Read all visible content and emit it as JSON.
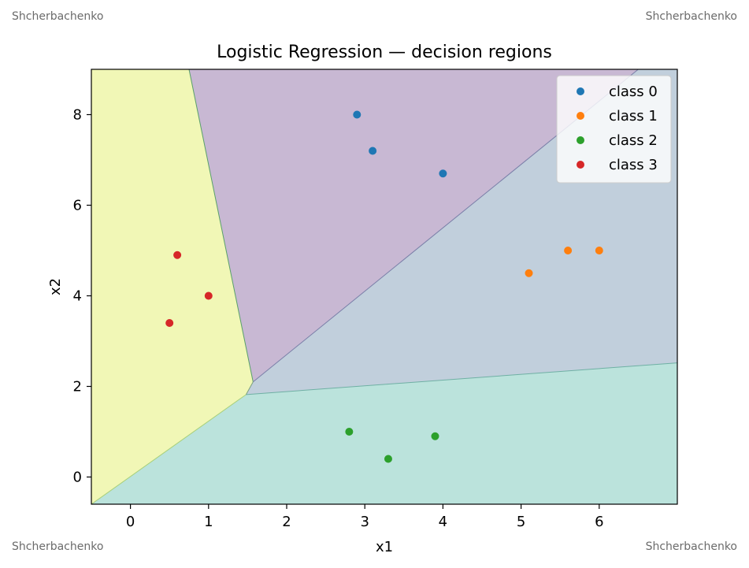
{
  "watermarks": {
    "top_left": "Shcherbachenko",
    "top_right": "Shcherbachenko",
    "bottom_left": "Shcherbachenko",
    "bottom_right": "Shcherbachenko"
  },
  "chart_data": {
    "type": "scatter",
    "title": "Logistic Regression — decision regions",
    "xlabel": "x1",
    "ylabel": "x2",
    "xlim": [
      -0.5,
      7.0
    ],
    "ylim": [
      -0.6,
      9.0
    ],
    "xticks": [
      0,
      1,
      2,
      3,
      4,
      5,
      6
    ],
    "yticks": [
      0,
      2,
      4,
      6,
      8
    ],
    "grid": false,
    "legend_position": "top-right",
    "series": [
      {
        "name": "class 0",
        "color": "#1f77b4",
        "points": [
          [
            2.9,
            8.0
          ],
          [
            3.1,
            7.2
          ],
          [
            4.0,
            6.7
          ]
        ]
      },
      {
        "name": "class 1",
        "color": "#ff7f0e",
        "points": [
          [
            5.1,
            4.5
          ],
          [
            5.6,
            5.0
          ],
          [
            6.0,
            5.0
          ]
        ]
      },
      {
        "name": "class 2",
        "color": "#2ca02c",
        "points": [
          [
            2.8,
            1.0
          ],
          [
            3.3,
            0.4
          ],
          [
            3.9,
            0.9
          ]
        ]
      },
      {
        "name": "class 3",
        "color": "#d62728",
        "points": [
          [
            0.5,
            3.4
          ],
          [
            0.6,
            4.9
          ],
          [
            1.0,
            4.0
          ]
        ]
      }
    ],
    "decision_regions": {
      "class_0": {
        "color": "#c8b8d3",
        "vertices": [
          [
            0.75,
            9.0
          ],
          [
            6.5,
            9.0
          ],
          [
            1.57,
            2.1
          ]
        ]
      },
      "class_1": {
        "color": "#c1cfdc",
        "vertices": [
          [
            6.5,
            9.0
          ],
          [
            7.0,
            9.0
          ],
          [
            7.0,
            2.52
          ],
          [
            1.48,
            1.82
          ],
          [
            1.57,
            2.1
          ]
        ]
      },
      "class_2": {
        "color": "#bbe3dc",
        "vertices": [
          [
            1.48,
            1.82
          ],
          [
            7.0,
            2.52
          ],
          [
            7.0,
            -0.6
          ],
          [
            -0.5,
            -0.6
          ]
        ]
      },
      "class_3": {
        "color": "#f1f7b6",
        "vertices": [
          [
            -0.5,
            9.0
          ],
          [
            0.75,
            9.0
          ],
          [
            1.57,
            2.1
          ],
          [
            1.48,
            1.82
          ],
          [
            -0.5,
            -0.6
          ]
        ]
      }
    }
  }
}
